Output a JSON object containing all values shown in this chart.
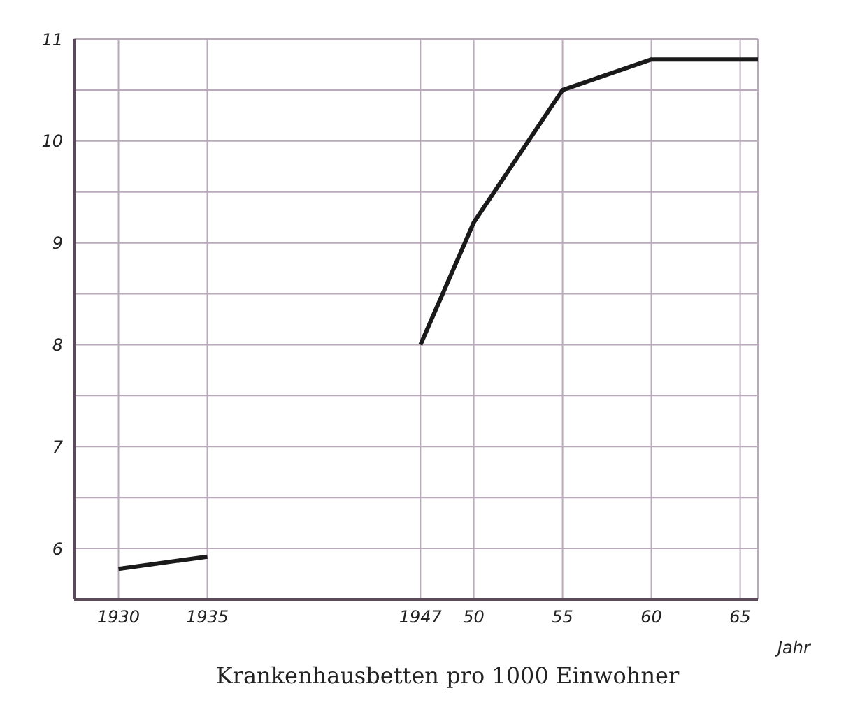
{
  "chart_data": {
    "type": "line",
    "title": "Krankenhausbetten pro 1000 Einwohner",
    "xlabel": "Jahr",
    "series": [
      {
        "color": "#1a1a1a",
        "x": [
          1930,
          1935
        ],
        "values": [
          5.8,
          5.92
        ]
      },
      {
        "color": "#1a1a1a",
        "x": [
          1947,
          1950,
          1955,
          1960,
          1966
        ],
        "values": [
          8.0,
          9.2,
          10.5,
          10.8,
          10.8
        ]
      }
    ],
    "xlim": [
      1927.5,
      1966
    ],
    "xticks": [
      1930,
      1935,
      1947,
      {
        "value": 1950,
        "label": "50"
      },
      {
        "value": 1955,
        "label": "55"
      },
      {
        "value": 1960,
        "label": "60"
      },
      {
        "value": 1965,
        "label": "65"
      },
      {
        "value": 1966,
        "label": null
      }
    ],
    "ylim": [
      5.5,
      11
    ],
    "yticks": [
      6,
      {
        "value": 6.5,
        "label": null
      },
      7,
      {
        "value": 7.5,
        "label": null
      },
      8,
      {
        "value": 8.5,
        "label": null
      },
      9,
      {
        "value": 9.5,
        "label": null
      },
      10,
      {
        "value": 10.5,
        "label": null
      },
      11
    ],
    "grid": true,
    "legend": false,
    "marker": "none",
    "line_style": "solid"
  }
}
